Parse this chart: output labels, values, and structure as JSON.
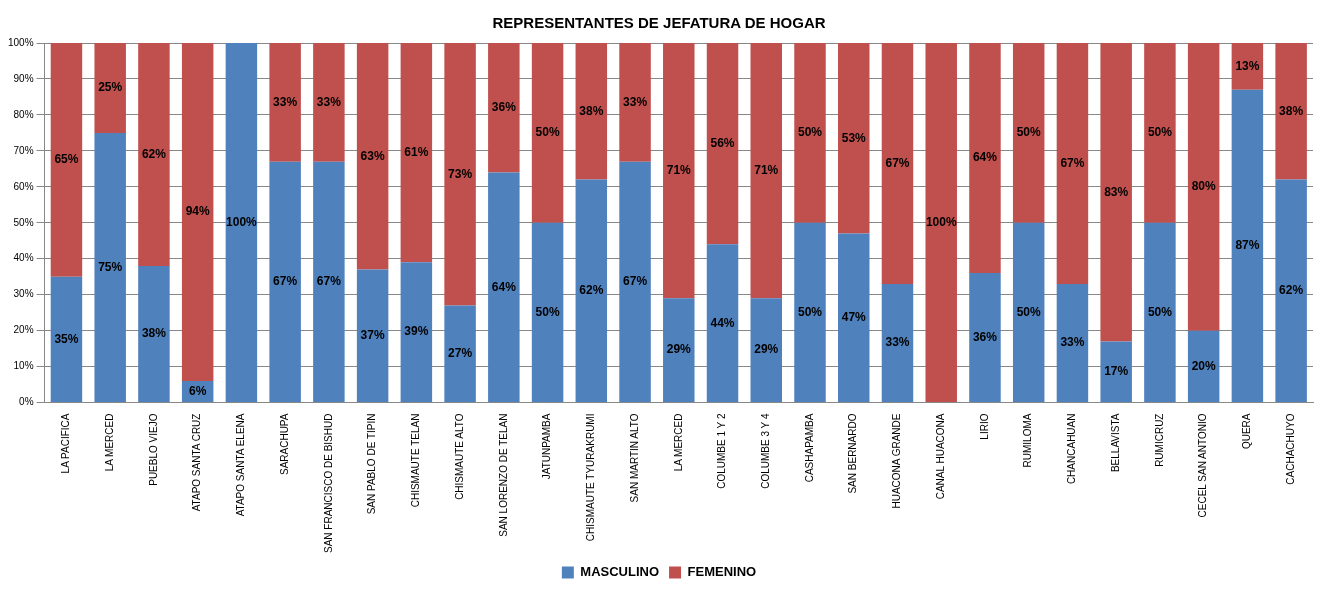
{
  "chart_data": {
    "type": "bar",
    "title": "REPRESENTANTES DE JEFATURA DE HOGAR",
    "stacked": true,
    "categories": [
      "LA PACIFICA",
      "LA MERCED",
      "PUEBLO VIEJO",
      "ATAPO SANTA CRUZ",
      "ATAPO SANTA ELENA",
      "SARACHUPA",
      "SAN FRANCISCO DE BISHUD",
      "SAN PABLO DE TIPIN",
      "CHISMAUTE TELAN",
      "CHISMAUTE ALTO",
      "SAN LORENZO DE TELAN",
      "JATUNPAMBA",
      "CHISMAUTE TYURAKRUMI",
      "SAN MARTIN ALTO",
      "LA MERCED",
      "COLUMBE 1 Y 2",
      "COLUMBE 3 Y 4",
      "CASHAPAMBA",
      "SAN BERNARDO",
      "HUACONA GRANDE",
      "CANAL HUACONA",
      "LIRIO",
      "RUMILOMA",
      "CHANCAHUAN",
      "BELLAVISTA",
      "RUMICRUZ",
      "CECEL SAN ANTONIO",
      "QUERA",
      "CACHACHUYO"
    ],
    "series": [
      {
        "name": "MASCULINO",
        "color": "#4f81bd",
        "values": [
          35,
          75,
          38,
          6,
          100,
          67,
          67,
          37,
          39,
          27,
          64,
          50,
          62,
          67,
          29,
          44,
          29,
          50,
          47,
          33,
          0,
          36,
          50,
          33,
          17,
          50,
          20,
          87,
          62
        ],
        "value_labels": [
          "35%",
          "75%",
          "38%",
          "6%",
          "100%",
          "67%",
          "67%",
          "37%",
          "39%",
          "27%",
          "64%",
          "50%",
          "62%",
          "67%",
          "29%",
          "44%",
          "29%",
          "50%",
          "47%",
          "33%",
          null,
          "36%",
          "50%",
          "33%",
          "17%",
          "50%",
          "20%",
          "87%",
          "62%"
        ]
      },
      {
        "name": "FEMENINO",
        "color": "#c0504d",
        "values": [
          65,
          25,
          62,
          94,
          0,
          33,
          33,
          63,
          61,
          73,
          36,
          50,
          38,
          33,
          71,
          56,
          71,
          50,
          53,
          67,
          100,
          64,
          50,
          67,
          83,
          50,
          80,
          13,
          38
        ],
        "value_labels": [
          "65%",
          "25%",
          "62%",
          "94%",
          null,
          "33%",
          "33%",
          "63%",
          "61%",
          "73%",
          "36%",
          "50%",
          "38%",
          "33%",
          "71%",
          "56%",
          "71%",
          "50%",
          "53%",
          "67%",
          "100%",
          "64%",
          "50%",
          "67%",
          "83%",
          "50%",
          "80%",
          "13%",
          "38%"
        ]
      }
    ],
    "ylim": [
      0,
      100
    ],
    "yticks": [
      {
        "value": 0,
        "label": "0%"
      },
      {
        "value": 10,
        "label": "10%"
      },
      {
        "value": 20,
        "label": "20%"
      },
      {
        "value": 30,
        "label": "30%"
      },
      {
        "value": 40,
        "label": "40%"
      },
      {
        "value": 50,
        "label": "50%"
      },
      {
        "value": 60,
        "label": "60%"
      },
      {
        "value": 70,
        "label": "70%"
      },
      {
        "value": 80,
        "label": "80%"
      },
      {
        "value": 90,
        "label": "90%"
      },
      {
        "value": 100,
        "label": "100%"
      }
    ],
    "grid": "y",
    "legend": "bottom"
  }
}
